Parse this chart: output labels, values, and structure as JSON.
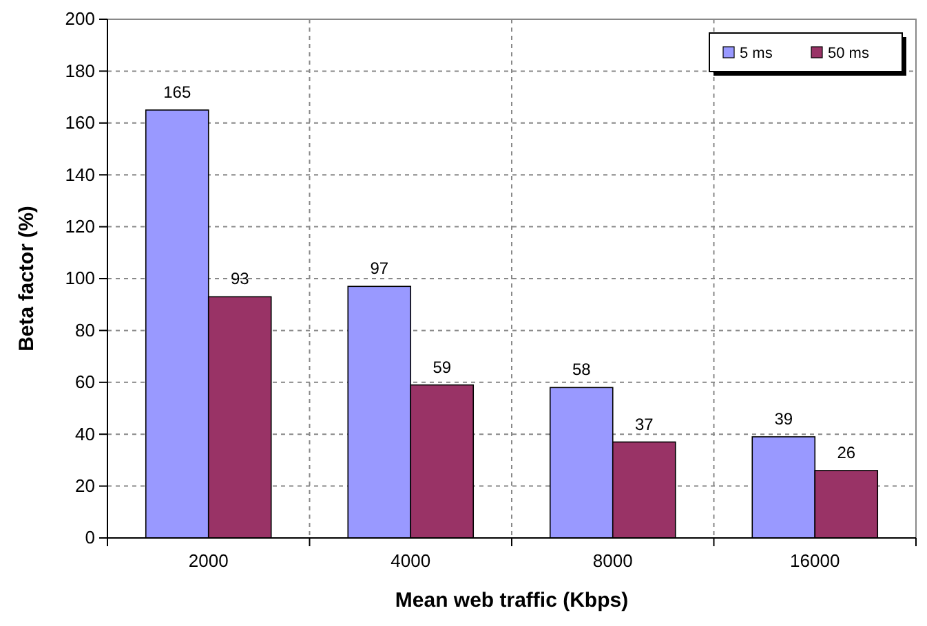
{
  "chart_data": {
    "type": "bar",
    "xlabel": "Mean web traffic (Kbps)",
    "ylabel": "Beta factor (%)",
    "categories": [
      "2000",
      "4000",
      "8000",
      "16000"
    ],
    "series": [
      {
        "name": "5 ms",
        "color": "#9999ff",
        "values": [
          165,
          97,
          58,
          39
        ]
      },
      {
        "name": "50 ms",
        "color": "#993366",
        "values": [
          93,
          59,
          37,
          26
        ]
      }
    ],
    "ylim": [
      0,
      200
    ],
    "yticks": [
      0,
      20,
      40,
      60,
      80,
      100,
      120,
      140,
      160,
      180,
      200
    ],
    "grid": true,
    "legend": "top right",
    "data_labels": true
  }
}
